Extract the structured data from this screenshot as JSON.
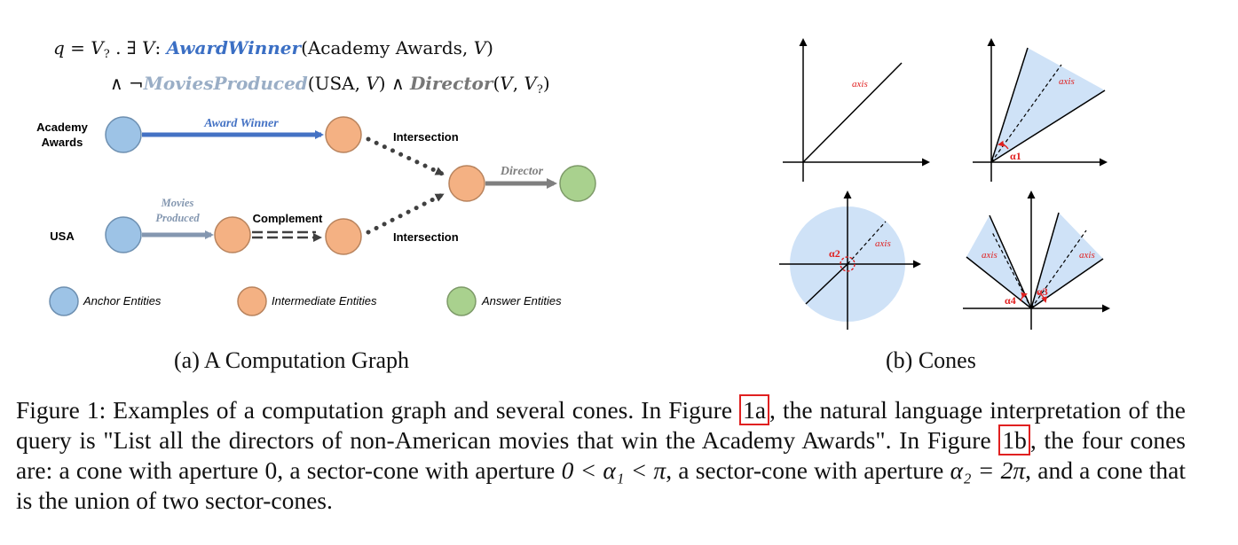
{
  "query": {
    "q": "q",
    "eq": "=",
    "v": "V",
    "sub": "?",
    "dot": ".",
    "exists": "∃",
    "colon": ":",
    "award_rel": "AwardWinner",
    "award_args": "(Academy Awards,",
    "close": ")",
    "and": "∧",
    "neg": "¬",
    "movies_rel": "MoviesProduced",
    "movies_args": "(USA,",
    "director_rel": "Director",
    "director_args": "(",
    "comma": ","
  },
  "graph": {
    "node_academy_label_1": "Academy",
    "node_academy_label_2": "Awards",
    "node_usa_label": "USA",
    "edge_award": "Award Winner",
    "edge_movies_1": "Movies",
    "edge_movies_2": "Produced",
    "edge_complement": "Complement",
    "edge_intersection_top": "Intersection",
    "edge_intersection_bottom": "Intersection",
    "edge_director": "Director",
    "legend_anchor": "Anchor Entities",
    "legend_intermediate": "Intermediate Entities",
    "legend_answer": "Answer Entities",
    "colors": {
      "anchor": "#9dc3e6",
      "intermediate": "#f4b183",
      "answer": "#a9d18e",
      "award_edge": "#4472c4",
      "movies_edge": "#8497b0",
      "director_edge": "#7f7f7f"
    }
  },
  "cones": {
    "axis_1": "axis",
    "axis_2": "axis",
    "axis_3": "axis",
    "axis_4a": "axis",
    "axis_4b": "axis",
    "alpha_1": "α1",
    "alpha_2": "α2",
    "alpha_3": "α3",
    "alpha_4": "α4",
    "fill_color": "#cfe2f7",
    "label_color": "#e02020"
  },
  "subcaptions": {
    "a": "(a) A Computation Graph",
    "b": "(b) Cones"
  },
  "caption": {
    "p1": "Figure 1: Examples of a computation graph and several cones. In Figure ",
    "ref_a": "1a",
    "p2": ", the natural language interpretation of the query is \"List all the directors of non-American movies that win the Academy Awards\". In Figure ",
    "ref_b": "1b",
    "p3": ", the four cones are: a cone with aperture ",
    "zero": "0",
    "p4": ", a sector-cone with aperture ",
    "ineq": "0 < α₁ < π",
    "p5": ", a sector-cone with aperture ",
    "eq2": "α₂ = 2π",
    "p6": ", and a cone that is the union of two sector-cones."
  }
}
